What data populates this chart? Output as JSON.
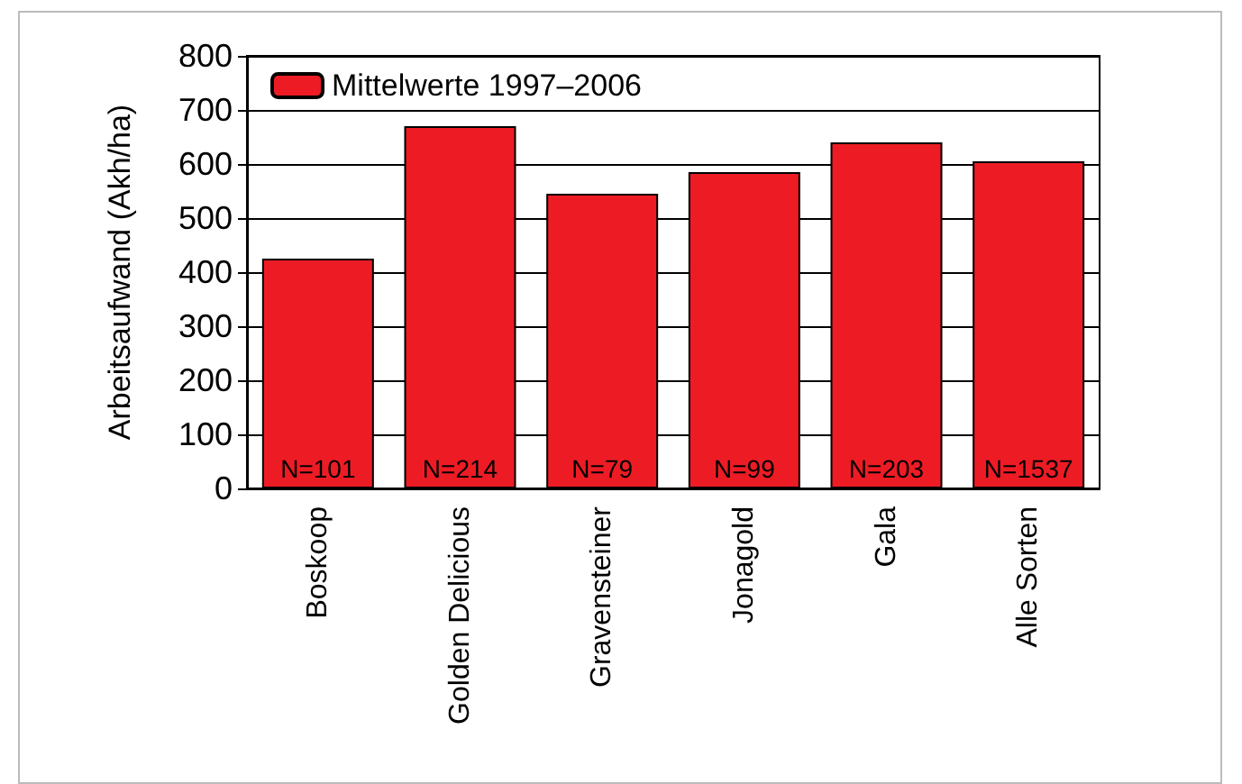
{
  "chart_data": {
    "type": "bar",
    "ylabel": "Arbeitsaufwand (Akh/ha)",
    "categories": [
      "Boskoop",
      "Golden Delicious",
      "Gravensteiner",
      "Jonagold",
      "Gala",
      "Alle Sorten"
    ],
    "series": [
      {
        "name": "Mittelwerte 1997–2006",
        "color": "#ed1c24",
        "values": [
          425,
          670,
          545,
          585,
          640,
          605
        ]
      }
    ],
    "ylim": [
      0,
      800
    ],
    "yticks": [
      0,
      100,
      200,
      300,
      400,
      500,
      600,
      700,
      800
    ],
    "grid": "y",
    "legend": "top left",
    "annotations": [
      {
        "text": "N=101",
        "x": "Boskoop",
        "y": 0
      },
      {
        "text": "N=214",
        "x": "Golden Delicious",
        "y": 0
      },
      {
        "text": "N=79",
        "x": "Gravensteiner",
        "y": 0
      },
      {
        "text": "N=99",
        "x": "Jonagold",
        "y": 0
      },
      {
        "text": "N=203",
        "x": "Gala",
        "y": 0
      },
      {
        "text": "N=1537",
        "x": "Alle Sorten",
        "y": 0
      }
    ]
  }
}
